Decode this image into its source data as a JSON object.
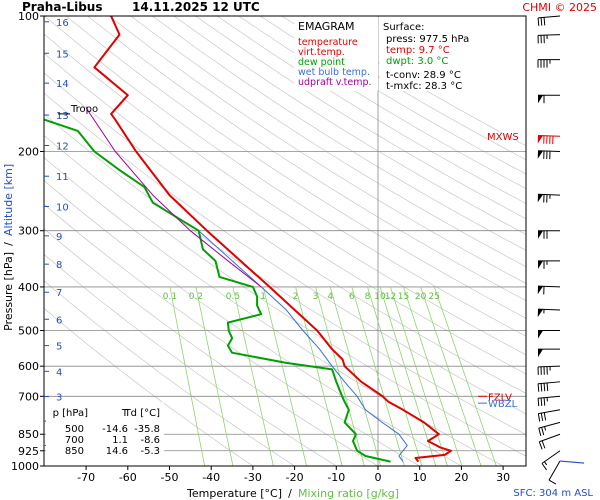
{
  "chart_data": {
    "type": "line",
    "station": "Praha-Libus",
    "time": "14.11.2025 12 UTC",
    "credit": "CHMI © 2025",
    "legend": {
      "title": "EMAGRAM",
      "items": [
        {
          "label": "temperature",
          "color": "#e00000"
        },
        {
          "label": "virt.temp.",
          "color": "#e00000"
        },
        {
          "label": "dew point",
          "color": "#00a000"
        },
        {
          "label": "wet bulb temp.",
          "color": "#3a6fd8"
        },
        {
          "label": "udpraft v.temp.",
          "color": "#a000a0"
        }
      ]
    },
    "surface": {
      "title": "Surface:",
      "press": "press: 977.5 hPa",
      "temp": "temp: 9.7 °C",
      "dwpt": "dwpt: 3.0 °C",
      "tconv": "t-conv: 28.9 °C",
      "tmxfc": "t-mxfc: 28.3 °C"
    },
    "xlabel": "Temperature [°C]",
    "xlabel_sep": "/",
    "xlabel2": "Mixing ratio [g/kg]",
    "ylabel": "Pressure [hPa]",
    "ylabel_sep": "/",
    "ylabel2": "Altitude [km]",
    "sfc_label": "SFC: 304 m ASL",
    "xlim": [
      -80,
      30
    ],
    "pressure_ticks": [
      100,
      200,
      300,
      400,
      500,
      600,
      700,
      850,
      925,
      1000
    ],
    "temp_ticks": [
      -70,
      -60,
      -50,
      -40,
      -30,
      -20,
      -10,
      0,
      10,
      20,
      30
    ],
    "altitude_ticks": [
      {
        "km": "1",
        "p": 900
      },
      {
        "km": "2",
        "p": 795
      },
      {
        "km": "3",
        "p": 701
      },
      {
        "km": "4",
        "p": 616
      },
      {
        "km": "5",
        "p": 540
      },
      {
        "km": "6",
        "p": 472
      },
      {
        "km": "7",
        "p": 411
      },
      {
        "km": "8",
        "p": 356
      },
      {
        "km": "9",
        "p": 308
      },
      {
        "km": "10",
        "p": 265
      },
      {
        "km": "11",
        "p": 227
      },
      {
        "km": "12",
        "p": 194
      },
      {
        "km": "13",
        "p": 166
      },
      {
        "km": "14",
        "p": 141
      },
      {
        "km": "15",
        "p": 121
      },
      {
        "km": "16",
        "p": 103
      }
    ],
    "mixing_ratio_labels": [
      "0.1",
      "0.2",
      "0.5",
      "1",
      "2",
      "3",
      "4",
      "6",
      "8",
      "10",
      "12",
      "15",
      "20",
      "25"
    ],
    "mixing_ratio_values": [
      0.1,
      0.2,
      0.5,
      1,
      2,
      3,
      4,
      6,
      8,
      10,
      12,
      15,
      20,
      25
    ],
    "levels_table": {
      "headers": [
        "p [hPa]",
        "T",
        "Td [°C]"
      ],
      "rows": [
        [
          "500",
          "-14.6",
          "-35.8"
        ],
        [
          "700",
          "1.1",
          "-8.6"
        ],
        [
          "850",
          "14.6",
          "-5.3"
        ]
      ]
    },
    "annotations": {
      "tropo": {
        "label": "Tropo",
        "p": 165
      },
      "mxws": {
        "label": "MXWS",
        "p": 185
      },
      "fzlv": {
        "label": "FZLV",
        "p": 700
      },
      "wbzl": {
        "label": "WBZL",
        "p": 725
      }
    },
    "series": [
      {
        "name": "temperature",
        "color": "#e00000",
        "points": [
          [
            977.5,
            9.7
          ],
          [
            960,
            9
          ],
          [
            945,
            16
          ],
          [
            925,
            17.5
          ],
          [
            910,
            15
          ],
          [
            880,
            12
          ],
          [
            850,
            14.6
          ],
          [
            800,
            11
          ],
          [
            750,
            6
          ],
          [
            720,
            2.5
          ],
          [
            700,
            1.1
          ],
          [
            650,
            -4
          ],
          [
            600,
            -8
          ],
          [
            580,
            -8.5
          ],
          [
            550,
            -11
          ],
          [
            500,
            -14.6
          ],
          [
            450,
            -20
          ],
          [
            400,
            -26
          ],
          [
            350,
            -33
          ],
          [
            300,
            -41
          ],
          [
            250,
            -50
          ],
          [
            200,
            -58
          ],
          [
            170,
            -63
          ],
          [
            165,
            -64
          ],
          [
            150,
            -60
          ],
          [
            130,
            -68
          ],
          [
            110,
            -62
          ],
          [
            100,
            -64
          ]
        ]
      },
      {
        "name": "dew point",
        "color": "#00a000",
        "points": [
          [
            977.5,
            3.0
          ],
          [
            950,
            -3
          ],
          [
            925,
            -5
          ],
          [
            880,
            -6
          ],
          [
            850,
            -5.3
          ],
          [
            800,
            -8
          ],
          [
            750,
            -7
          ],
          [
            720,
            -8
          ],
          [
            700,
            -8.6
          ],
          [
            650,
            -10
          ],
          [
            610,
            -11
          ],
          [
            590,
            -22
          ],
          [
            560,
            -35
          ],
          [
            540,
            -36
          ],
          [
            520,
            -35
          ],
          [
            500,
            -35.8
          ],
          [
            480,
            -36
          ],
          [
            460,
            -28
          ],
          [
            440,
            -29
          ],
          [
            420,
            -29
          ],
          [
            400,
            -30
          ],
          [
            380,
            -38
          ],
          [
            350,
            -39
          ],
          [
            330,
            -42
          ],
          [
            300,
            -43
          ],
          [
            260,
            -54
          ],
          [
            240,
            -56
          ],
          [
            220,
            -62
          ],
          [
            200,
            -68
          ],
          [
            180,
            -72
          ],
          [
            170,
            -80
          ]
        ]
      },
      {
        "name": "wet bulb temp.",
        "color": "#3a6fd8",
        "points": [
          [
            977.5,
            6
          ],
          [
            950,
            5
          ],
          [
            925,
            6
          ],
          [
            900,
            7
          ],
          [
            850,
            5
          ],
          [
            800,
            1
          ],
          [
            750,
            -3
          ],
          [
            700,
            -5
          ],
          [
            650,
            -8
          ],
          [
            600,
            -11
          ],
          [
            550,
            -14
          ],
          [
            500,
            -18
          ],
          [
            450,
            -22
          ],
          [
            400,
            -28
          ],
          [
            350,
            -35
          ],
          [
            300,
            -43
          ]
        ]
      },
      {
        "name": "udpraft v.temp.",
        "color": "#a000a0",
        "points": [
          [
            400,
            -28
          ],
          [
            350,
            -36
          ],
          [
            300,
            -45
          ],
          [
            250,
            -54
          ],
          [
            200,
            -63
          ],
          [
            160,
            -70
          ]
        ]
      }
    ],
    "wind_barbs": [
      {
        "p": 975,
        "dir": 210,
        "spd": 10
      },
      {
        "p": 925,
        "dir": 235,
        "spd": 15
      },
      {
        "p": 850,
        "dir": 250,
        "spd": 20
      },
      {
        "p": 800,
        "dir": 255,
        "spd": 25
      },
      {
        "p": 750,
        "dir": 260,
        "spd": 30
      },
      {
        "p": 700,
        "dir": 265,
        "spd": 35
      },
      {
        "p": 650,
        "dir": 265,
        "spd": 40
      },
      {
        "p": 600,
        "dir": 268,
        "spd": 45
      },
      {
        "p": 550,
        "dir": 270,
        "spd": 50
      },
      {
        "p": 500,
        "dir": 270,
        "spd": 50
      },
      {
        "p": 450,
        "dir": 272,
        "spd": 55
      },
      {
        "p": 400,
        "dir": 272,
        "spd": 60
      },
      {
        "p": 350,
        "dir": 270,
        "spd": 65
      },
      {
        "p": 300,
        "dir": 270,
        "spd": 70
      },
      {
        "p": 250,
        "dir": 272,
        "spd": 75
      },
      {
        "p": 200,
        "dir": 272,
        "spd": 80
      },
      {
        "p": 185,
        "dir": 272,
        "spd": 90,
        "color": "#e00000"
      },
      {
        "p": 150,
        "dir": 270,
        "spd": 60
      },
      {
        "p": 125,
        "dir": 270,
        "spd": 45
      },
      {
        "p": 110,
        "dir": 268,
        "spd": 35
      },
      {
        "p": 100,
        "dir": 265,
        "spd": 30
      }
    ]
  }
}
